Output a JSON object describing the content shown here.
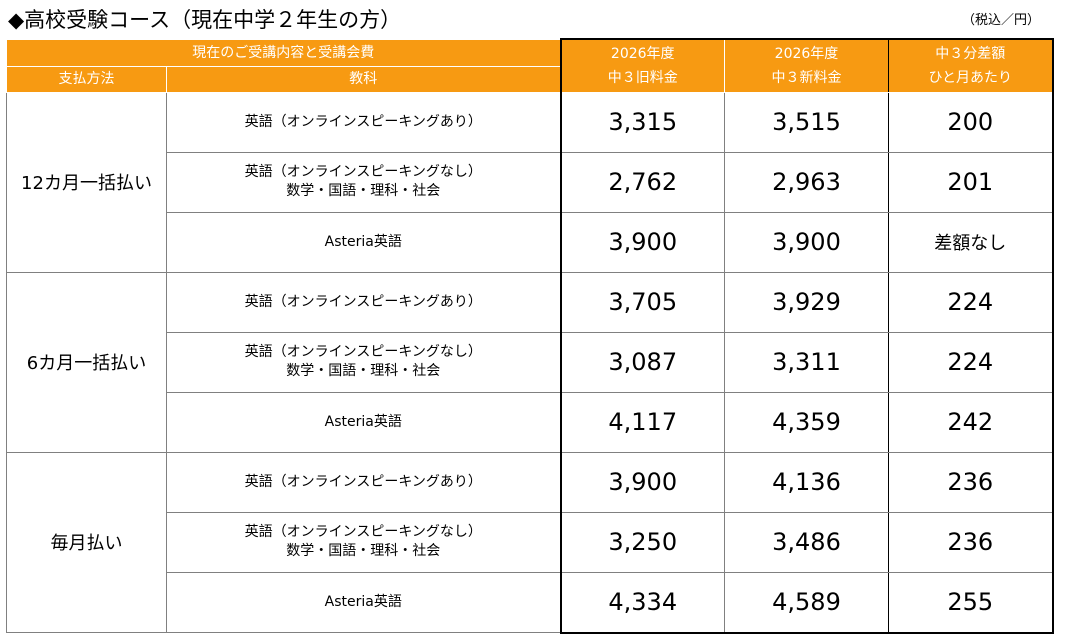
{
  "title": "◆高校受験コース（現在中学２年生の方）",
  "unit": "（税込／円）",
  "header": {
    "group_label": "現在のご受講内容と受講会費",
    "payment_method_label": "支払方法",
    "subject_label": "教科",
    "col_old_line1": "2026年度",
    "col_old_line2": "中３旧料金",
    "col_new_line1": "2026年度",
    "col_new_line2": "中３新料金",
    "col_diff_line1": "中３分差額",
    "col_diff_line2": "ひと月あたり"
  },
  "groups": [
    {
      "method": "12カ月一括払い",
      "rows": [
        {
          "subject1": "英語（オンラインスピーキングあり）",
          "subject2": "",
          "old": "3,315",
          "new": "3,515",
          "diff": "200"
        },
        {
          "subject1": "英語（オンラインスピーキングなし）",
          "subject2": "数学・国語・理科・社会",
          "old": "2,762",
          "new": "2,963",
          "diff": "201"
        },
        {
          "subject1": "Asteria英語",
          "subject2": "",
          "old": "3,900",
          "new": "3,900",
          "diff": "差額なし"
        }
      ]
    },
    {
      "method": "6カ月一括払い",
      "rows": [
        {
          "subject1": "英語（オンラインスピーキングあり）",
          "subject2": "",
          "old": "3,705",
          "new": "3,929",
          "diff": "224"
        },
        {
          "subject1": "英語（オンラインスピーキングなし）",
          "subject2": "数学・国語・理科・社会",
          "old": "3,087",
          "new": "3,311",
          "diff": "224"
        },
        {
          "subject1": "Asteria英語",
          "subject2": "",
          "old": "4,117",
          "new": "4,359",
          "diff": "242"
        }
      ]
    },
    {
      "method": "毎月払い",
      "rows": [
        {
          "subject1": "英語（オンラインスピーキングあり）",
          "subject2": "",
          "old": "3,900",
          "new": "4,136",
          "diff": "236"
        },
        {
          "subject1": "英語（オンラインスピーキングなし）",
          "subject2": "数学・国語・理科・社会",
          "old": "3,250",
          "new": "3,486",
          "diff": "236"
        },
        {
          "subject1": "Asteria英語",
          "subject2": "",
          "old": "4,334",
          "new": "4,589",
          "diff": "255"
        }
      ]
    }
  ]
}
